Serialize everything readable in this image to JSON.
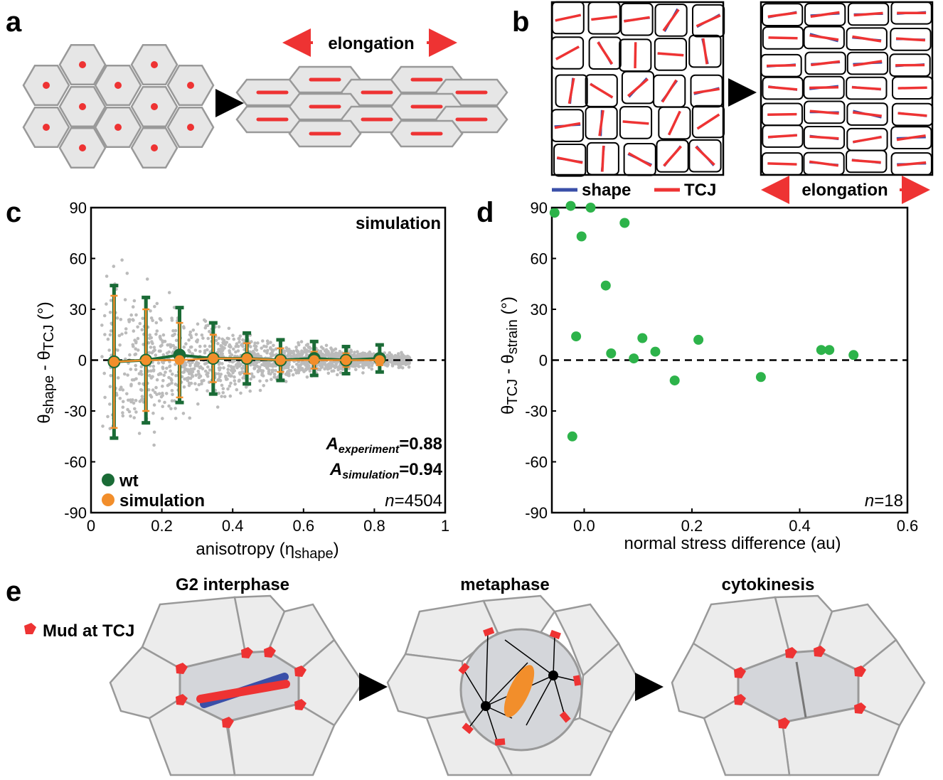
{
  "panel_labels": {
    "a": "a",
    "b": "b",
    "c": "c",
    "d": "d",
    "e": "e"
  },
  "panel_a": {
    "elongation_label": "elongation"
  },
  "panel_b": {
    "legend_shape": "shape",
    "legend_tcj": "TCJ",
    "elongation_label": "elongation"
  },
  "panel_c": {
    "title": "simulation",
    "a_experiment_prefix": "A",
    "a_experiment_sub": "experiment",
    "a_experiment_value": "=0.88",
    "a_simulation_prefix": "A",
    "a_simulation_sub": "simulation",
    "a_simulation_value": "=0.94",
    "n_prefix": "n",
    "n_value": "=4504",
    "legend_wt": "wt",
    "legend_sim": "simulation",
    "xlabel_main": "anisotropy (",
    "xlabel_eta": "η",
    "xlabel_sub": "shape",
    "xlabel_close": ")",
    "ylabel_theta1": "θ",
    "ylabel_sub1": "shape",
    "ylabel_mid": " - θ",
    "ylabel_sub2": "TCJ",
    "ylabel_unit": " (°)"
  },
  "panel_d": {
    "n_prefix": "n",
    "n_value": "=18",
    "xlabel": "normal stress difference (au)",
    "ylabel_theta1": "θ",
    "ylabel_sub1": "TCJ",
    "ylabel_mid": " - θ",
    "ylabel_sub2": "strain",
    "ylabel_unit": " (°)"
  },
  "panel_e": {
    "stage1": "G2 interphase",
    "stage2": "metaphase",
    "stage3": "cytokinesis",
    "legend_mud": "Mud at TCJ"
  },
  "colors": {
    "red": "#ee3333",
    "blue": "#3a4fa8",
    "green_dark": "#1a6b36",
    "orange": "#f28e2b",
    "green_points": "#2db34a",
    "grey_points": "#bbbbbb"
  },
  "chart_data": [
    {
      "type": "scatter",
      "title": "simulation",
      "xlabel": "anisotropy (ηshape)",
      "ylabel": "θshape - θTCJ (°)",
      "xlim": [
        0,
        1
      ],
      "ylim": [
        -90,
        90
      ],
      "x_ticks": [
        "0",
        "0.2",
        "0.4",
        "0.6",
        "0.8",
        "1"
      ],
      "y_ticks": [
        "90",
        "60",
        "30",
        "0",
        "-30",
        "-60",
        "-90"
      ],
      "reference_line_y": 0,
      "legend_position": "bottom-left",
      "series": [
        {
          "name": "wt",
          "x": [
            0.065,
            0.155,
            0.25,
            0.345,
            0.44,
            0.535,
            0.63,
            0.72,
            0.815
          ],
          "y": [
            -1,
            0,
            3,
            1,
            1,
            0,
            1,
            0,
            1
          ],
          "err": [
            45,
            37,
            28,
            21,
            15,
            12,
            10,
            8,
            8
          ]
        },
        {
          "name": "simulation",
          "x": [
            0.065,
            0.155,
            0.25,
            0.345,
            0.44,
            0.535,
            0.63,
            0.72,
            0.815
          ],
          "y": [
            -1,
            0,
            0,
            1,
            1,
            0,
            0,
            0,
            0
          ],
          "err": [
            39,
            30,
            22,
            14,
            9,
            7,
            5,
            4,
            3
          ]
        }
      ],
      "annotations": [
        "Aexperiment=0.88",
        "Asimulation=0.94",
        "n=4504"
      ]
    },
    {
      "type": "scatter",
      "xlabel": "normal stress difference (au)",
      "ylabel": "θTCJ - θstrain (°)",
      "xlim": [
        -0.06,
        0.6
      ],
      "ylim": [
        -90,
        90
      ],
      "x_ticks": [
        "0.0",
        "0.2",
        "0.4",
        "0.6"
      ],
      "y_ticks": [
        "90",
        "60",
        "30",
        "0",
        "-30",
        "-60",
        "-90"
      ],
      "reference_line_y": 0,
      "series": [
        {
          "x": [
            -0.055,
            -0.025,
            0.012,
            -0.005,
            0.075,
            0.04,
            -0.015,
            0.05,
            0.092,
            0.108,
            0.132,
            0.168,
            0.212,
            0.328,
            0.44,
            0.455,
            0.5,
            -0.022
          ],
          "y": [
            87,
            91,
            90,
            73,
            81,
            44,
            14,
            4,
            1,
            13,
            5,
            -12,
            12,
            -10,
            6,
            6,
            3,
            -45
          ]
        }
      ],
      "annotations": [
        "n=18"
      ]
    }
  ]
}
